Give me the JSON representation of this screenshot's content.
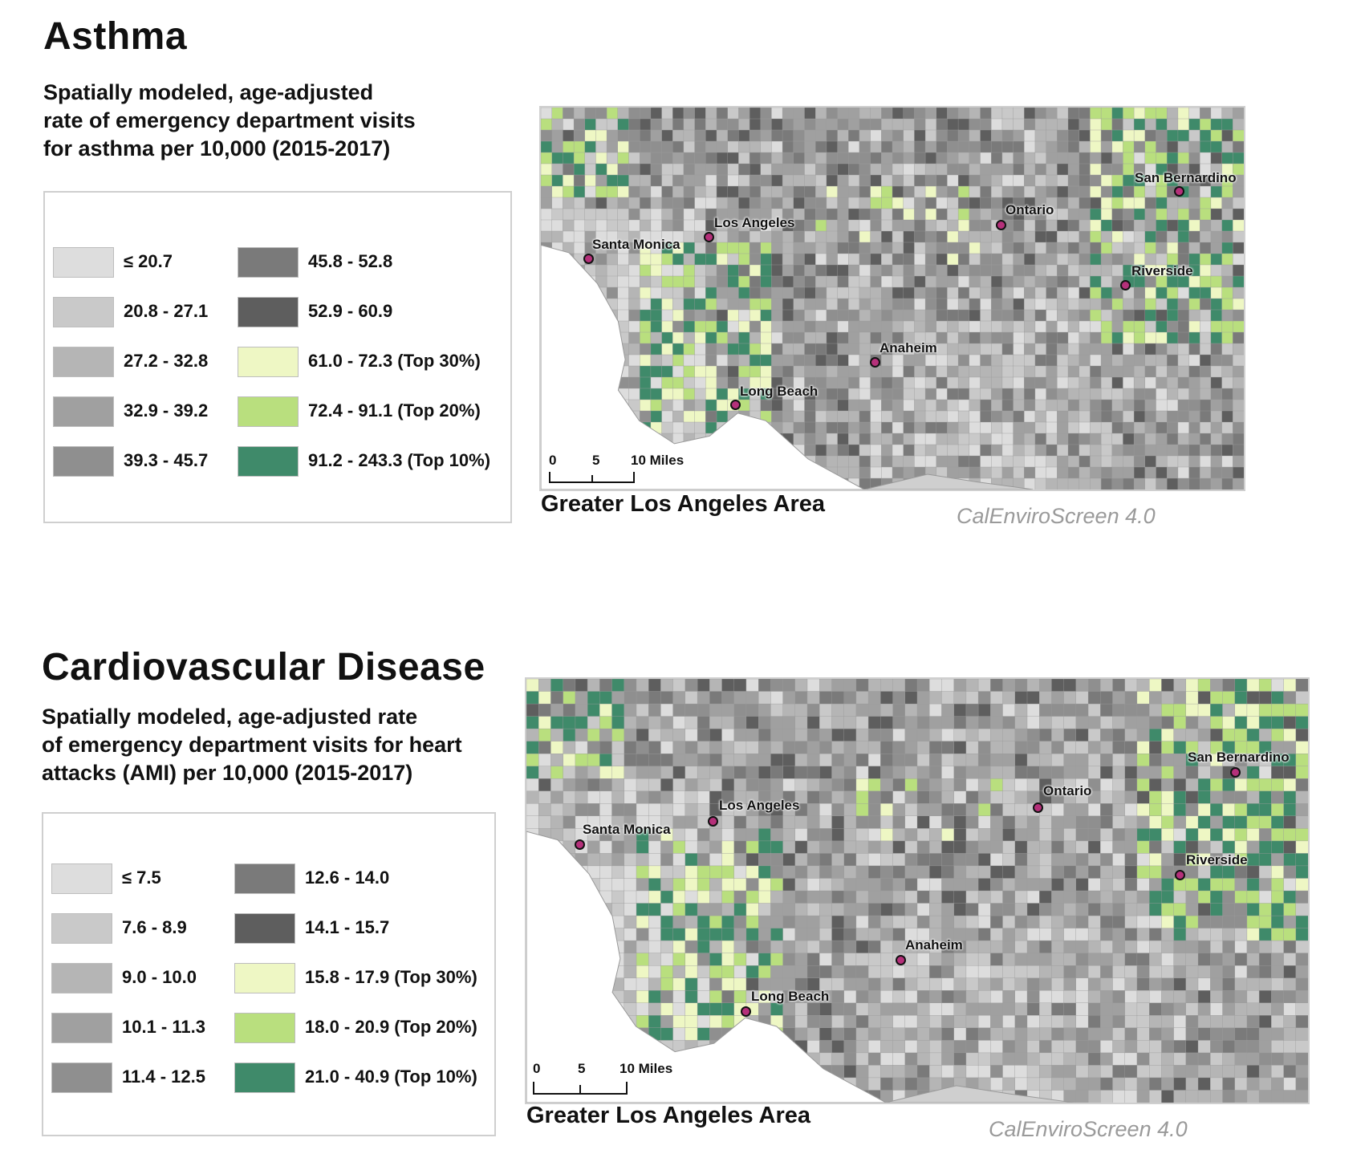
{
  "colors": {
    "c1": "#dddddd",
    "c2": "#c9c9c9",
    "c3": "#b5b5b5",
    "c4": "#a0a0a0",
    "c5": "#8f8f8f",
    "c6": "#7a7a7a",
    "c7": "#5e5e5e",
    "top30": "#eef7c4",
    "top20": "#b9df7e",
    "top10": "#3f8a6a",
    "ocean": "#ffffff",
    "city_dot": "#b5307a"
  },
  "asthma": {
    "title": "Asthma",
    "subtitle": [
      "Spatially modeled, age-adjusted",
      "rate of emergency department visits",
      "for asthma per 10,000 (2015-2017)"
    ],
    "legend": [
      {
        "label": "≤ 20.7",
        "color": "#dddddd"
      },
      {
        "label": "20.8 - 27.1",
        "color": "#c9c9c9"
      },
      {
        "label": "27.2 - 32.8",
        "color": "#b5b5b5"
      },
      {
        "label": "32.9 - 39.2",
        "color": "#a0a0a0"
      },
      {
        "label": "39.3 - 45.7",
        "color": "#8f8f8f"
      },
      {
        "label": "45.8 - 52.8",
        "color": "#7a7a7a"
      },
      {
        "label": "52.9 - 60.9",
        "color": "#5e5e5e"
      },
      {
        "label": "61.0 - 72.3   (Top 30%)",
        "color": "#eef7c4"
      },
      {
        "label": "72.4 - 91.1   (Top 20%)",
        "color": "#b9df7e"
      },
      {
        "label": "91.2 - 243.3 (Top 10%)",
        "color": "#3f8a6a"
      }
    ],
    "cities": [
      "San Bernardino",
      "Ontario",
      "Los Angeles",
      "Santa Monica",
      "Riverside",
      "Anaheim",
      "Long Beach"
    ],
    "scale": {
      "ticks": [
        "0",
        "5",
        "10 Miles"
      ]
    },
    "area_label": "Greater Los Angeles Area",
    "source": "CalEnviroScreen 4.0"
  },
  "cvd": {
    "title": "Cardiovascular Disease",
    "subtitle": [
      "Spatially modeled, age-adjusted rate",
      "of emergency department visits for heart",
      "attacks (AMI) per 10,000 (2015-2017)"
    ],
    "legend": [
      {
        "label": "≤ 7.5",
        "color": "#dddddd"
      },
      {
        "label": "7.6 - 8.9",
        "color": "#c9c9c9"
      },
      {
        "label": "9.0 - 10.0",
        "color": "#b5b5b5"
      },
      {
        "label": "10.1 - 11.3",
        "color": "#a0a0a0"
      },
      {
        "label": "11.4 - 12.5",
        "color": "#8f8f8f"
      },
      {
        "label": "12.6 - 14.0",
        "color": "#7a7a7a"
      },
      {
        "label": "14.1 - 15.7",
        "color": "#5e5e5e"
      },
      {
        "label": "15.8 - 17.9 (Top 30%)",
        "color": "#eef7c4"
      },
      {
        "label": "18.0 - 20.9 (Top 20%)",
        "color": "#b9df7e"
      },
      {
        "label": "21.0 - 40.9 (Top 10%)",
        "color": "#3f8a6a"
      }
    ],
    "cities": [
      "San Bernardino",
      "Ontario",
      "Los Angeles",
      "Santa Monica",
      "Riverside",
      "Anaheim",
      "Long Beach"
    ],
    "scale": {
      "ticks": [
        "0",
        "5",
        "10 Miles"
      ]
    },
    "area_label": "Greater Los Angeles Area",
    "source": "CalEnviroScreen 4.0"
  }
}
